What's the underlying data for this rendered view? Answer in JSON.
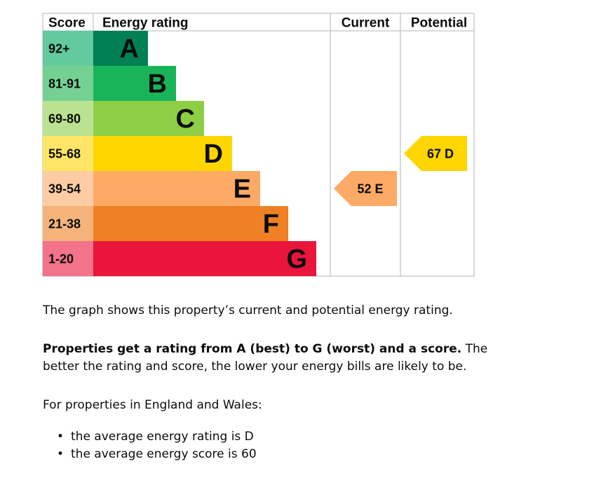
{
  "chart_data": {
    "type": "bar",
    "headers": {
      "score": "Score",
      "rating": "Energy rating",
      "current": "Current",
      "potential": "Potential"
    },
    "bands": [
      {
        "letter": "A",
        "range": "92+",
        "color": "#008054",
        "score_color": "#63c99f"
      },
      {
        "letter": "B",
        "range": "81-91",
        "color": "#19b459",
        "score_color": "#75d193"
      },
      {
        "letter": "C",
        "range": "69-80",
        "color": "#8dce46",
        "score_color": "#bbe290"
      },
      {
        "letter": "D",
        "range": "55-68",
        "color": "#ffd500",
        "score_color": "#ffe566"
      },
      {
        "letter": "E",
        "range": "39-54",
        "color": "#fcaa65",
        "score_color": "#fdcca3"
      },
      {
        "letter": "F",
        "range": "21-38",
        "color": "#ef8023",
        "score_color": "#f5b37b"
      },
      {
        "letter": "G",
        "range": "1-20",
        "color": "#e9153b",
        "score_color": "#f2738a"
      }
    ],
    "current": {
      "score": 52,
      "band": "E",
      "label": "52  E",
      "color": "#fcaa65"
    },
    "potential": {
      "score": 67,
      "band": "D",
      "label": "67  D",
      "color": "#ffd500"
    }
  },
  "text": {
    "intro": "The graph shows this property’s current and potential energy rating.",
    "bold_lead": "Properties get a rating from A (best) to G (worst) and a score.",
    "rest": " The better the rating and score, the lower your energy bills are likely to be.",
    "region": "For properties in England and Wales:",
    "bullets": [
      "the average energy rating is D",
      "the average energy score is 60"
    ]
  }
}
